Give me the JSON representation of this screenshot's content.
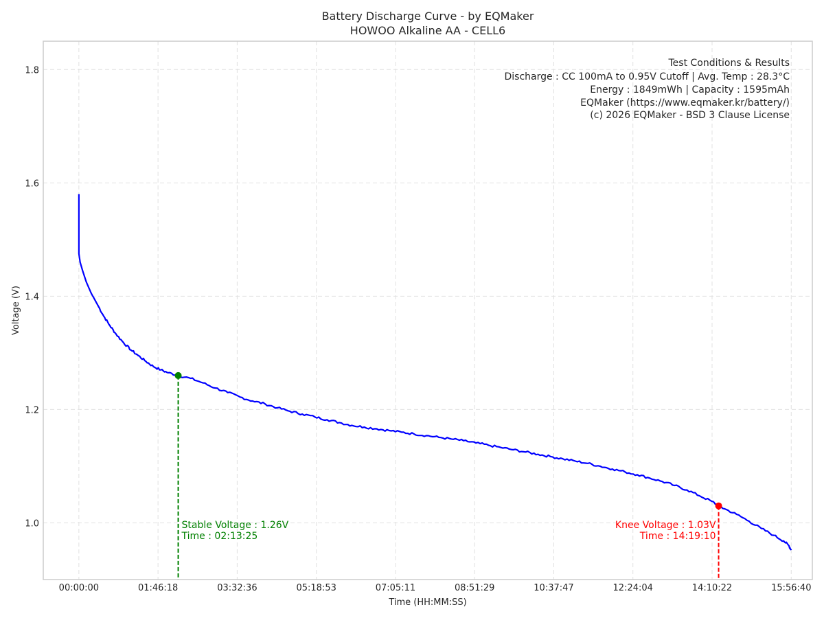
{
  "chart_data": {
    "type": "line",
    "title": "Battery Discharge Curve - by EQMaker",
    "subtitle": "HOWOO Alkaline AA - CELL6",
    "xlabel": "Time (HH:MM:SS)",
    "ylabel": "Voltage (V)",
    "x_unit_note": "x values are elapsed time in seconds",
    "xlim": [
      -2870,
      59100
    ],
    "ylim": [
      0.9,
      1.85
    ],
    "x_ticks": [
      {
        "value": 0,
        "label": "00:00:00"
      },
      {
        "value": 6378,
        "label": "01:46:18"
      },
      {
        "value": 12756,
        "label": "03:32:36"
      },
      {
        "value": 19133,
        "label": "05:18:53"
      },
      {
        "value": 25511,
        "label": "07:05:11"
      },
      {
        "value": 31889,
        "label": "08:51:29"
      },
      {
        "value": 38267,
        "label": "10:37:47"
      },
      {
        "value": 44644,
        "label": "12:24:04"
      },
      {
        "value": 51022,
        "label": "14:10:22"
      },
      {
        "value": 57400,
        "label": "15:56:40"
      }
    ],
    "y_ticks": [
      {
        "value": 1.0,
        "label": "1.0"
      },
      {
        "value": 1.2,
        "label": "1.2"
      },
      {
        "value": 1.4,
        "label": "1.4"
      },
      {
        "value": 1.6,
        "label": "1.6"
      },
      {
        "value": 1.8,
        "label": "1.8"
      }
    ],
    "grid": true,
    "series": [
      {
        "color": "#0000ff",
        "x": [
          0,
          0,
          100,
          300,
          600,
          1000,
          1500,
          2000,
          2500,
          3000,
          3600,
          4200,
          4800,
          5400,
          6000,
          6600,
          7200,
          8005,
          9000,
          10000,
          11000,
          12000,
          13000,
          14000,
          15000,
          16000,
          17000,
          18000,
          19000,
          20000,
          21000,
          22000,
          23000,
          24000,
          25000,
          26000,
          27000,
          28000,
          29000,
          30000,
          31000,
          32000,
          33000,
          34000,
          35000,
          36000,
          37000,
          38000,
          39000,
          40000,
          41000,
          42000,
          43000,
          44000,
          45000,
          46000,
          47000,
          48000,
          49000,
          50000,
          51000,
          51550,
          52000,
          53000,
          54000,
          55000,
          56000,
          56800,
          57200,
          57400
        ],
        "y": [
          1.58,
          1.475,
          1.46,
          1.445,
          1.425,
          1.405,
          1.385,
          1.365,
          1.348,
          1.333,
          1.318,
          1.305,
          1.295,
          1.285,
          1.276,
          1.27,
          1.265,
          1.26,
          1.255,
          1.247,
          1.238,
          1.23,
          1.222,
          1.215,
          1.21,
          1.203,
          1.197,
          1.192,
          1.187,
          1.182,
          1.177,
          1.172,
          1.169,
          1.166,
          1.163,
          1.16,
          1.157,
          1.154,
          1.151,
          1.148,
          1.145,
          1.141,
          1.137,
          1.133,
          1.129,
          1.125,
          1.121,
          1.117,
          1.113,
          1.109,
          1.105,
          1.1,
          1.095,
          1.09,
          1.085,
          1.079,
          1.073,
          1.066,
          1.058,
          1.048,
          1.038,
          1.03,
          1.025,
          1.015,
          1.003,
          0.99,
          0.978,
          0.968,
          0.96,
          0.952
        ]
      }
    ],
    "markers": [
      {
        "name": "stable",
        "x": 8005,
        "y": 1.26,
        "color": "#008000",
        "label1": "Stable Voltage : 1.26V",
        "label2": "Time : 02:13:25",
        "align": "left"
      },
      {
        "name": "knee",
        "x": 51550,
        "y": 1.03,
        "color": "#ff0000",
        "label1": "Knee Voltage : 1.03V",
        "label2": "Time : 14:19:10",
        "align": "right"
      }
    ],
    "info_box": {
      "position": "top-right",
      "lines": [
        "Test Conditions & Results",
        "Discharge : CC 100mA to 0.95V Cutoff | Avg. Temp : 28.3°C",
        "Energy : 1849mWh | Capacity : 1595mAh",
        "EQMaker (https://www.eqmaker.kr/battery/)",
        "(c) 2026 EQMaker - BSD 3 Clause License"
      ]
    },
    "colors": {
      "line": "#0000ff",
      "grid": "#e0e0e0",
      "frame": "#cccccc",
      "text": "#262626"
    }
  }
}
